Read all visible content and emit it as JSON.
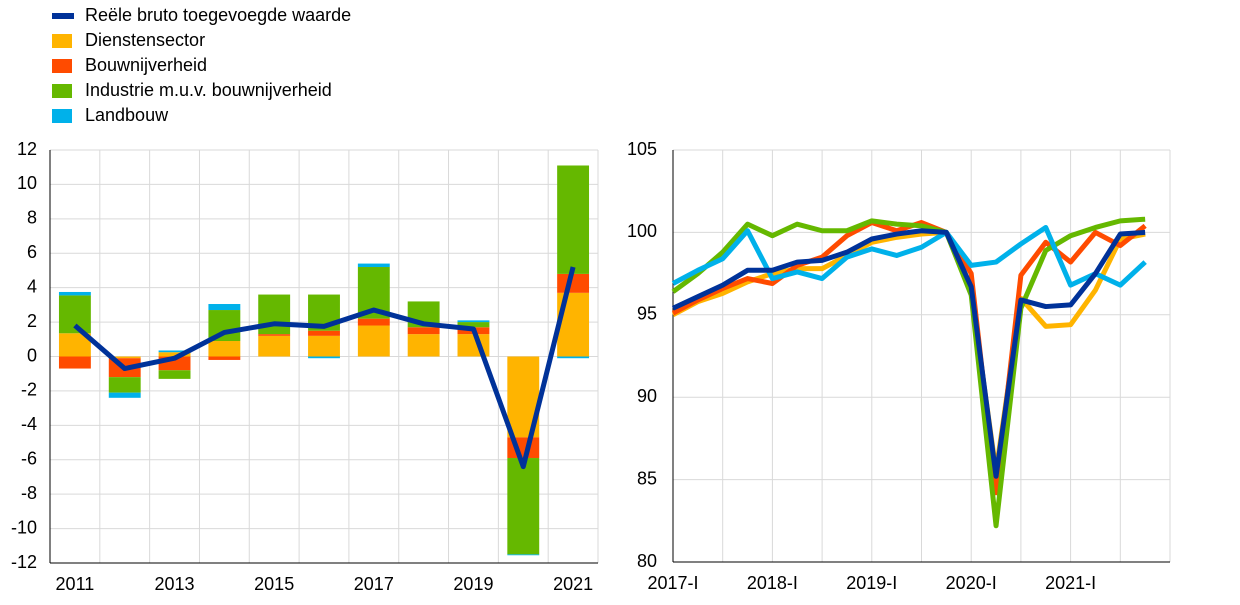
{
  "chart_data": [
    {
      "type": "bar",
      "categories": [
        "2011",
        null,
        "2013",
        null,
        "2015",
        null,
        "2017",
        null,
        "2019",
        null,
        "2021"
      ],
      "series": [
        {
          "name": "Reële bruto toegevoegde waarde",
          "color": "#003299",
          "kind": "line",
          "values": [
            1.8,
            -0.7,
            -0.1,
            1.4,
            1.9,
            1.75,
            2.7,
            1.9,
            1.6,
            -6.4,
            5.2
          ]
        },
        {
          "name": "Dienstensector",
          "color": "#ffb400",
          "kind": "bar",
          "values": [
            1.35,
            -0.1,
            0.25,
            0.9,
            1.2,
            1.2,
            1.8,
            1.3,
            1.3,
            -4.7,
            3.7
          ]
        },
        {
          "name": "Bouwnijverheid",
          "color": "#ff4b00",
          "kind": "bar",
          "values": [
            -0.7,
            -1.1,
            -0.8,
            -0.2,
            0.1,
            0.3,
            0.4,
            0.4,
            0.4,
            -1.2,
            1.1
          ]
        },
        {
          "name": "Industrie m.u.v. bouwnijverheid",
          "color": "#65b800",
          "kind": "bar",
          "values": [
            2.2,
            -0.9,
            -0.5,
            1.8,
            2.3,
            2.1,
            3.0,
            1.5,
            0.3,
            -5.6,
            6.3
          ]
        },
        {
          "name": "Landbouw",
          "color": "#00b1ea",
          "kind": "bar",
          "values": [
            0.2,
            -0.3,
            0.1,
            0.35,
            0.0,
            -0.1,
            0.2,
            0.0,
            0.1,
            -0.05,
            -0.1
          ]
        }
      ],
      "ylim": [
        -12,
        12
      ],
      "yticks": [
        -12,
        -10,
        -8,
        -6,
        -4,
        -2,
        0,
        2,
        4,
        6,
        8,
        10,
        12
      ],
      "grid": true
    },
    {
      "type": "line",
      "categories": [
        "2017-I",
        null,
        null,
        null,
        "2018-I",
        null,
        null,
        null,
        "2019-I",
        null,
        null,
        null,
        "2020-I",
        null,
        null,
        null,
        "2021-I",
        null,
        null,
        null
      ],
      "series": [
        {
          "color": "#ffb400",
          "values": [
            95.0,
            95.8,
            96.3,
            97.0,
            97.5,
            97.8,
            97.8,
            98.6,
            99.4,
            99.7,
            99.9,
            100,
            96.3,
            85.5,
            96.0,
            94.3,
            94.4,
            96.5,
            99.6,
            99.9
          ]
        },
        {
          "color": "#ff4b00",
          "values": [
            95.1,
            95.9,
            96.6,
            97.2,
            96.9,
            98.0,
            98.5,
            99.8,
            100.6,
            100.1,
            100.6,
            100,
            97.5,
            84.2,
            97.4,
            99.4,
            98.2,
            100.0,
            99.2,
            100.4
          ]
        },
        {
          "color": "#65b800",
          "values": [
            96.4,
            97.5,
            98.8,
            100.5,
            99.8,
            100.5,
            100.1,
            100.1,
            100.7,
            100.5,
            100.4,
            100,
            96.2,
            82.2,
            95.4,
            98.9,
            99.8,
            100.3,
            100.7,
            100.8
          ]
        },
        {
          "color": "#00b1ea",
          "values": [
            96.9,
            97.7,
            98.4,
            100.1,
            97.2,
            97.6,
            97.2,
            98.5,
            99.0,
            98.6,
            99.1,
            100,
            98.0,
            98.2,
            99.3,
            100.3,
            96.8,
            97.5,
            96.8,
            98.2
          ]
        },
        {
          "color": "#003299",
          "values": [
            95.4,
            96.1,
            96.8,
            97.7,
            97.7,
            98.2,
            98.3,
            98.8,
            99.6,
            99.9,
            100.1,
            100,
            96.7,
            85.2,
            95.9,
            95.5,
            95.6,
            97.5,
            99.9,
            100.0
          ]
        }
      ],
      "ylim": [
        80,
        105
      ],
      "yticks": [
        80,
        85,
        90,
        95,
        100,
        105
      ],
      "grid": true
    }
  ]
}
